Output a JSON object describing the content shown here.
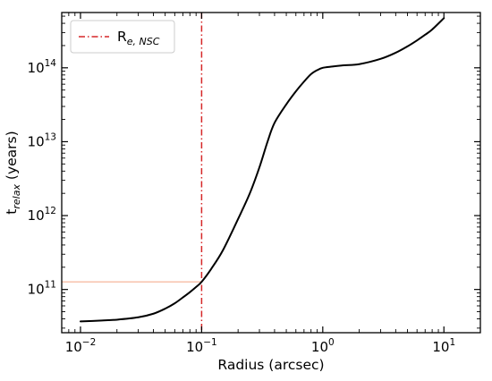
{
  "chart_data": {
    "type": "line",
    "xlabel": "Radius (arcsec)",
    "ylabel": {
      "main": "t",
      "sub": "relax",
      "unit": " (years)"
    },
    "x_scale": "log",
    "y_scale": "log",
    "xlim": [
      0.007,
      20
    ],
    "ylim": [
      26000000000.0,
      560000000000000.0
    ],
    "grid": false,
    "legend_position": "top-left",
    "x_ticks": [
      {
        "value": 0.01,
        "base": "10",
        "exp": "−2"
      },
      {
        "value": 0.1,
        "base": "10",
        "exp": "−1"
      },
      {
        "value": 1,
        "base": "10",
        "exp": "0"
      },
      {
        "value": 10,
        "base": "10",
        "exp": "1"
      }
    ],
    "y_ticks": [
      {
        "value": 100000000000.0,
        "base": "10",
        "exp": "11"
      },
      {
        "value": 1000000000000.0,
        "base": "10",
        "exp": "12"
      },
      {
        "value": 10000000000000.0,
        "base": "10",
        "exp": "13"
      },
      {
        "value": 100000000000000.0,
        "base": "10",
        "exp": "14"
      }
    ],
    "series": [
      {
        "color": "#000000",
        "style": "solid",
        "x": [
          0.01,
          0.015,
          0.02,
          0.03,
          0.04,
          0.05,
          0.06,
          0.07,
          0.08,
          0.09,
          0.1,
          0.12,
          0.15,
          0.2,
          0.25,
          0.3,
          0.35,
          0.4,
          0.5,
          0.6,
          0.7,
          0.8,
          0.9,
          1.0,
          1.2,
          1.5,
          2,
          3,
          4,
          5,
          6,
          7,
          8,
          10
        ],
        "y": [
          37000000000.0,
          38000000000.0,
          39000000000.0,
          42000000000.0,
          47000000000.0,
          55000000000.0,
          65000000000.0,
          78000000000.0,
          92000000000.0,
          108000000000.0,
          127000000000.0,
          190000000000.0,
          340000000000.0,
          900000000000.0,
          2000000000000.0,
          4500000000000.0,
          10000000000000.0,
          18000000000000.0,
          32000000000000.0,
          48000000000000.0,
          65000000000000.0,
          82000000000000.0,
          93000000000000.0,
          100000000000000.0,
          104000000000000.0,
          108000000000000.0,
          112000000000000.0,
          132000000000000.0,
          160000000000000.0,
          195000000000000.0,
          235000000000000.0,
          280000000000000.0,
          330000000000000.0,
          470000000000000.0
        ]
      }
    ],
    "annotations": [
      {
        "label_main": "R",
        "label_sub": "e, NSC",
        "type": "vertical-line",
        "x": 0.1,
        "color": "#d62728",
        "style": "dash-dot"
      },
      {
        "type": "horizontal-line",
        "y": 127000000000.0,
        "x_end": 0.1,
        "color": "#f4a582",
        "style": "solid"
      }
    ]
  }
}
